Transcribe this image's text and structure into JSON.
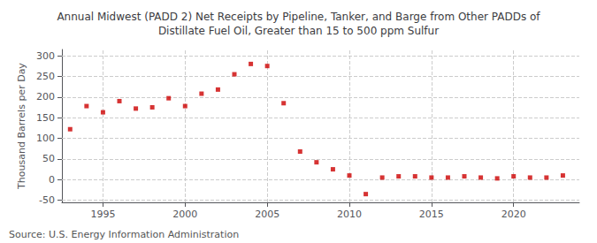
{
  "chart_data": {
    "type": "scatter",
    "title": "Annual Midwest (PADD 2) Net Receipts by Pipeline, Tanker, and Barge from Other PADDs of\nDistillate Fuel Oil, Greater than 15 to 500 ppm Sulfur",
    "ylabel": "Thousand Barrels per Day",
    "annotations": [
      "Source: U.S. Energy Information Administration"
    ],
    "x": [
      1993,
      1994,
      1995,
      1996,
      1997,
      1998,
      1999,
      2000,
      2001,
      2002,
      2003,
      2004,
      2005,
      2006,
      2007,
      2008,
      2009,
      2010,
      2011,
      2012,
      2013,
      2014,
      2015,
      2016,
      2017,
      2018,
      2019,
      2020,
      2021,
      2022,
      2023
    ],
    "values": [
      122,
      178,
      163,
      190,
      172,
      175,
      197,
      178,
      208,
      218,
      255,
      280,
      275,
      185,
      68,
      42,
      25,
      10,
      -35,
      5,
      8,
      8,
      5,
      5,
      8,
      5,
      3,
      8,
      5,
      5,
      10
    ],
    "color": "#cc0000",
    "marker": "square",
    "xlim": [
      1992.5,
      2024
    ],
    "ylim": [
      -55,
      315
    ],
    "xticks": [
      1995,
      2000,
      2005,
      2010,
      2015,
      2020
    ],
    "yticks": [
      -50,
      0,
      50,
      100,
      150,
      200,
      250,
      300
    ],
    "grid": true
  }
}
